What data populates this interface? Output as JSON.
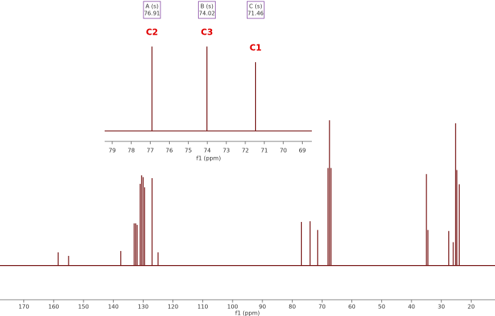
{
  "chart_data": [
    {
      "type": "stem",
      "xlabel": "f1 (ppm)",
      "color": "#6b0000",
      "xlim": [
        178,
        12
      ],
      "xticks": [
        170,
        160,
        150,
        140,
        130,
        120,
        110,
        100,
        90,
        80,
        70,
        60,
        50,
        40,
        30,
        20
      ],
      "ylim": [
        -10,
        150
      ],
      "x": [
        158.5,
        155,
        137.5,
        133,
        132.5,
        132,
        131,
        130.5,
        130,
        129.5,
        127,
        125,
        76.91,
        74.02,
        71.46,
        68.0,
        67.5,
        67.0,
        35,
        34.5,
        27.5,
        26,
        25.2,
        24.8,
        24.0
      ],
      "values": [
        13,
        9.5,
        14.3,
        41.5,
        41.5,
        40,
        80.4,
        88.8,
        87,
        77,
        86,
        13,
        42.9,
        43.6,
        35,
        96,
        143,
        96,
        90,
        35,
        34,
        23,
        140,
        94,
        80
      ]
    },
    {
      "type": "stem",
      "xlabel": "f1 (ppm)",
      "color": "#6b0000",
      "xlim": [
        79.4,
        68.5
      ],
      "xticks": [
        79,
        78,
        77,
        76,
        75,
        74,
        73,
        72,
        71,
        70,
        69
      ],
      "ylim": [
        -5,
        130
      ],
      "x": [
        76.91,
        74.02,
        71.46
      ],
      "values": [
        124,
        124,
        101
      ],
      "peak_names": [
        "A (s)",
        "B (s)",
        "C (s)"
      ],
      "annotations": [
        "C2",
        "C3",
        "C1"
      ],
      "annotation_color": "#e00000",
      "box_color": "#8040a0"
    }
  ]
}
